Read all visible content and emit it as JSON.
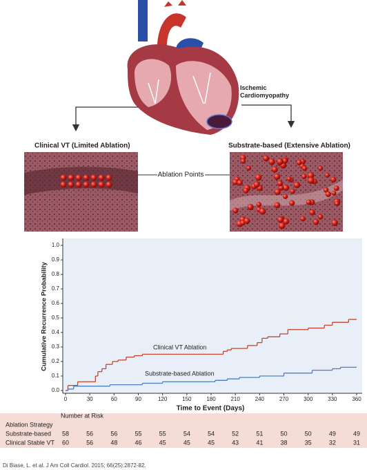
{
  "illustration": {
    "heart_label": "Ischemic Cardiomyopathy",
    "left_panel": "Clinical VT  (Limited Ablation)",
    "right_panel": "Substrate-based (Extensive Ablation)",
    "center_label": "Ablation Points"
  },
  "chart_data": {
    "type": "line",
    "step": true,
    "xlabel": "Time to Event (Days)",
    "ylabel": "Cumulative Recurrence Probability",
    "xlim": [
      0,
      360
    ],
    "ylim": [
      0,
      1
    ],
    "xticks": [
      0,
      30,
      60,
      90,
      120,
      150,
      180,
      210,
      240,
      270,
      300,
      330,
      360
    ],
    "yticks": [
      {
        "value": 0,
        "label": "0.0"
      },
      0.1,
      0.2,
      0.3,
      0.4,
      0.5,
      0.6,
      0.7,
      0.8,
      0.9,
      {
        "value": 1,
        "label": "1.0"
      }
    ],
    "background": "#e9eff8",
    "series": [
      {
        "name": "Clinical VT Ablation",
        "color": "#c5462b",
        "x": [
          0,
          3,
          15,
          37,
          40,
          45,
          50,
          58,
          65,
          75,
          85,
          95,
          195,
          200,
          205,
          225,
          237,
          243,
          250,
          265,
          275,
          300,
          320,
          330,
          350
        ],
        "values": [
          0,
          0.035,
          0.06,
          0.1,
          0.13,
          0.15,
          0.18,
          0.2,
          0.21,
          0.23,
          0.24,
          0.25,
          0.27,
          0.28,
          0.29,
          0.31,
          0.33,
          0.36,
          0.37,
          0.39,
          0.42,
          0.43,
          0.45,
          0.47,
          0.49
        ]
      },
      {
        "name": "Substrate-based Ablation",
        "color": "#4a7ec2",
        "x": [
          0,
          3,
          10,
          55,
          95,
          120,
          185,
          200,
          215,
          240,
          270,
          305,
          330,
          340
        ],
        "values": [
          0,
          0.01,
          0.03,
          0.04,
          0.05,
          0.06,
          0.07,
          0.08,
          0.09,
          0.1,
          0.12,
          0.14,
          0.15,
          0.16
        ]
      }
    ]
  },
  "risk_table": {
    "title": "Number at Risk",
    "header": "Ablation Strategy",
    "rows": [
      {
        "label": "Substrate-based",
        "values": [
          58,
          56,
          56,
          55,
          55,
          54,
          54,
          52,
          51,
          50,
          50,
          49,
          49
        ]
      },
      {
        "label": "Clinical Stable VT",
        "values": [
          60,
          56,
          48,
          46,
          45,
          45,
          45,
          43,
          41,
          38,
          35,
          32,
          31
        ]
      }
    ]
  },
  "citation": "Di Biase, L. et al. J Am Coll Cardiol. 2015; 66(25):2872-82."
}
